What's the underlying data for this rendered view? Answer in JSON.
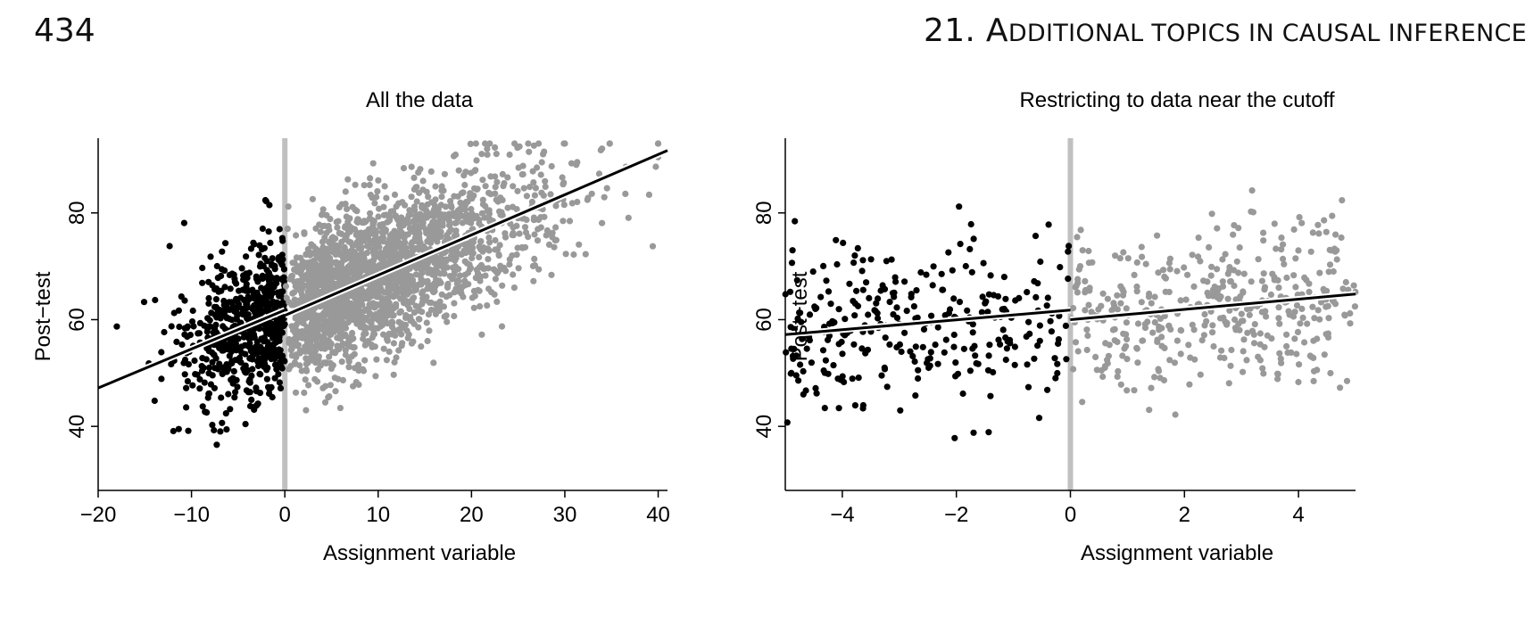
{
  "header": {
    "page_number": "434",
    "chapter_number": "21.",
    "chapter_first_letter": "A",
    "chapter_rest": "DDITIONAL TOPICS IN CAUSAL INFERENCE"
  },
  "colors": {
    "treated": "#000000",
    "control": "#999999",
    "cutoff_line": "#c0c0c0",
    "fit_line": "#000000"
  },
  "chart_data": [
    {
      "type": "scatter",
      "title": "All the data",
      "xlabel": "Assignment variable",
      "ylabel": "Post−test",
      "xlim": [
        -20,
        41
      ],
      "ylim": [
        28,
        94
      ],
      "xticks": [
        -20,
        -10,
        0,
        10,
        20,
        30,
        40
      ],
      "xtick_labels": [
        "−20",
        "−10",
        "0",
        "10",
        "20",
        "30",
        "40"
      ],
      "yticks": [
        40,
        60,
        80
      ],
      "ytick_labels": [
        "40",
        "60",
        "80"
      ],
      "cutoff": 0,
      "grid": false,
      "series": [
        {
          "name": "assignment below cutoff (black points)",
          "x_range": [
            -18,
            0
          ],
          "count": 650,
          "seed": 11
        },
        {
          "name": "assignment above cutoff (gray points)",
          "x_range": [
            0,
            40
          ],
          "count": 2200,
          "seed": 29
        }
      ],
      "fit_lines": [
        {
          "name": "fit below cutoff",
          "x": [
            -20,
            0
          ],
          "y": [
            47.2,
            61.8
          ]
        },
        {
          "name": "fit above cutoff",
          "x": [
            0,
            41
          ],
          "y": [
            60.8,
            91.7
          ]
        }
      ]
    },
    {
      "type": "scatter",
      "title": "Restricting to data near the cutoff",
      "xlabel": "Assignment variable",
      "ylabel": "Post−test",
      "xlim": [
        -5,
        5
      ],
      "ylim": [
        28,
        94
      ],
      "xticks": [
        -4,
        -2,
        0,
        2,
        4
      ],
      "xtick_labels": [
        "−4",
        "−2",
        "0",
        "2",
        "4"
      ],
      "yticks": [
        40,
        60,
        80
      ],
      "ytick_labels": [
        "40",
        "60",
        "80"
      ],
      "cutoff": 0,
      "grid": false,
      "series": [
        {
          "name": "assignment below cutoff (black points)",
          "x_range": [
            -5,
            0
          ],
          "count": 290,
          "seed": 5
        },
        {
          "name": "assignment above cutoff (gray points)",
          "x_range": [
            0,
            5
          ],
          "count": 420,
          "seed": 17
        }
      ],
      "fit_lines": [
        {
          "name": "fit below cutoff",
          "x": [
            -5,
            0
          ],
          "y": [
            57.2,
            61.8
          ]
        },
        {
          "name": "fit above cutoff",
          "x": [
            0,
            5
          ],
          "y": [
            60.0,
            64.8
          ]
        }
      ]
    }
  ]
}
